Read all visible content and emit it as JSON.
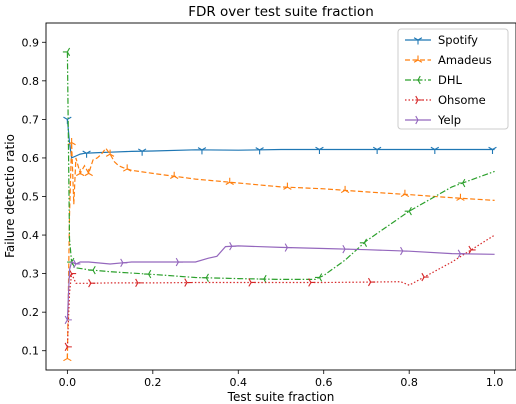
{
  "chart_data": {
    "type": "line",
    "title": "FDR over test suite fraction",
    "xlabel": "Test suite fraction",
    "ylabel": "Failure detectio ratio",
    "xlim": [
      -0.05,
      1.05
    ],
    "ylim": [
      0.05,
      0.95
    ],
    "xticks": [
      0.0,
      0.2,
      0.4,
      0.6,
      0.8,
      1.0
    ],
    "yticks": [
      0.1,
      0.2,
      0.3,
      0.4,
      0.5,
      0.6,
      0.7,
      0.8,
      0.9
    ],
    "grid": false,
    "legend_position": "top-right",
    "series": [
      {
        "name": "Spotify",
        "color": "#1f77b4",
        "linestyle": "solid",
        "marker": "tri_down",
        "x": [
          0.0,
          0.005,
          0.01,
          0.02,
          0.03,
          0.04,
          0.06,
          0.08,
          0.1,
          0.15,
          0.2,
          0.3,
          0.4,
          0.5,
          0.6,
          0.7,
          0.8,
          0.9,
          1.0
        ],
        "y": [
          0.7,
          0.64,
          0.6,
          0.605,
          0.61,
          0.612,
          0.613,
          0.614,
          0.615,
          0.617,
          0.618,
          0.621,
          0.62,
          0.622,
          0.622,
          0.622,
          0.622,
          0.622,
          0.622
        ],
        "markers_x": [
          0.0,
          0.045,
          0.175,
          0.315,
          0.45,
          0.59,
          0.725,
          0.86,
          0.995
        ]
      },
      {
        "name": "Amadeus",
        "color": "#ff7f0e",
        "linestyle": "dashed",
        "marker": "tri_up",
        "x": [
          0.0,
          0.005,
          0.01,
          0.015,
          0.02,
          0.03,
          0.04,
          0.05,
          0.06,
          0.07,
          0.08,
          0.09,
          0.1,
          0.11,
          0.12,
          0.13,
          0.15,
          0.2,
          0.3,
          0.4,
          0.5,
          0.6,
          0.7,
          0.8,
          0.9,
          1.0
        ],
        "y": [
          0.08,
          0.45,
          0.64,
          0.48,
          0.6,
          0.56,
          0.58,
          0.56,
          0.595,
          0.6,
          0.61,
          0.625,
          0.61,
          0.59,
          0.58,
          0.575,
          0.568,
          0.56,
          0.545,
          0.535,
          0.525,
          0.52,
          0.512,
          0.505,
          0.497,
          0.49
        ],
        "markers_x": [
          0.0,
          0.01,
          0.03,
          0.05,
          0.1,
          0.14,
          0.25,
          0.38,
          0.515,
          0.65,
          0.79,
          0.92
        ]
      },
      {
        "name": "DHL",
        "color": "#2ca02c",
        "linestyle": "dashdot",
        "marker": "tri_left",
        "x": [
          0.0,
          0.005,
          0.01,
          0.015,
          0.02,
          0.05,
          0.1,
          0.2,
          0.3,
          0.4,
          0.5,
          0.58,
          0.6,
          0.65,
          0.7,
          0.8,
          0.9,
          1.0
        ],
        "y": [
          0.875,
          0.39,
          0.33,
          0.318,
          0.315,
          0.31,
          0.305,
          0.298,
          0.29,
          0.287,
          0.285,
          0.285,
          0.295,
          0.335,
          0.385,
          0.462,
          0.525,
          0.565
        ],
        "markers_x": [
          0.0,
          0.01,
          0.06,
          0.19,
          0.325,
          0.46,
          0.59,
          0.695,
          0.8,
          0.925
        ]
      },
      {
        "name": "Ohsome",
        "color": "#d62728",
        "linestyle": "dotted",
        "marker": "tri_right",
        "x": [
          0.0,
          0.005,
          0.01,
          0.02,
          0.05,
          0.1,
          0.2,
          0.3,
          0.4,
          0.5,
          0.6,
          0.7,
          0.78,
          0.8,
          0.9,
          1.0
        ],
        "y": [
          0.11,
          0.25,
          0.3,
          0.275,
          0.275,
          0.276,
          0.276,
          0.277,
          0.277,
          0.277,
          0.277,
          0.278,
          0.279,
          0.27,
          0.33,
          0.4
        ],
        "markers_x": [
          0.0,
          0.01,
          0.055,
          0.165,
          0.28,
          0.43,
          0.57,
          0.71,
          0.835,
          0.945
        ]
      },
      {
        "name": "Yelp",
        "color": "#9467bd",
        "linestyle": "solid",
        "marker": "tri_right",
        "x": [
          0.0,
          0.005,
          0.01,
          0.02,
          0.03,
          0.05,
          0.1,
          0.15,
          0.2,
          0.3,
          0.33,
          0.35,
          0.37,
          0.4,
          0.5,
          0.6,
          0.7,
          0.8,
          0.9,
          1.0
        ],
        "y": [
          0.18,
          0.31,
          0.33,
          0.325,
          0.33,
          0.33,
          0.325,
          0.33,
          0.33,
          0.33,
          0.34,
          0.345,
          0.37,
          0.372,
          0.368,
          0.365,
          0.362,
          0.358,
          0.352,
          0.35
        ],
        "markers_x": [
          0.0,
          0.02,
          0.13,
          0.26,
          0.385,
          0.515,
          0.65,
          0.785,
          0.92
        ]
      }
    ]
  }
}
